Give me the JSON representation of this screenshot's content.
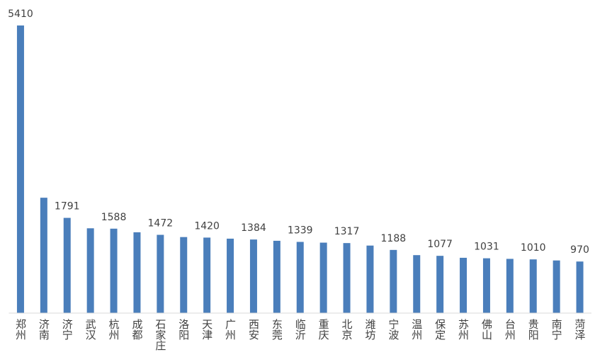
{
  "chart_data": {
    "type": "bar",
    "categories": [
      "郑州",
      "济南",
      "济宁",
      "武汉",
      "杭州",
      "成都",
      "石家庄",
      "洛阳",
      "天津",
      "广州",
      "西安",
      "东莞",
      "临沂",
      "重庆",
      "北京",
      "潍坊",
      "宁波",
      "温州",
      "保定",
      "苏州",
      "佛山",
      "台州",
      "贵阳",
      "南宁",
      "菏泽"
    ],
    "values": [
      5410,
      2170,
      1791,
      1595,
      1588,
      1520,
      1472,
      1430,
      1420,
      1400,
      1384,
      1360,
      1339,
      1325,
      1317,
      1270,
      1188,
      1090,
      1077,
      1040,
      1031,
      1020,
      1010,
      990,
      970
    ],
    "value_labels": [
      "5410",
      null,
      "1791",
      null,
      "1588",
      null,
      "1472",
      null,
      "1420",
      null,
      "1384",
      null,
      "1339",
      null,
      "1317",
      null,
      "1188",
      null,
      "1077",
      null,
      "1031",
      null,
      "1010",
      null,
      "970"
    ],
    "color": "#4a7ebb",
    "ylim": [
      0,
      5600
    ]
  }
}
